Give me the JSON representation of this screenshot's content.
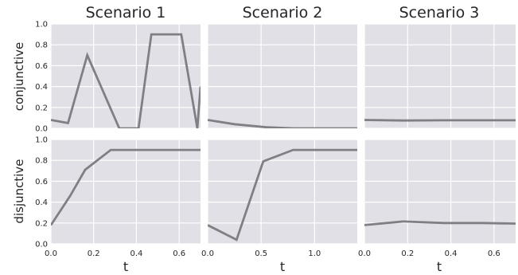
{
  "figure": {
    "col_titles": [
      "Scenario 1",
      "Scenario 2",
      "Scenario 3"
    ],
    "row_labels": [
      "conjunctive",
      "disjunctive"
    ],
    "xlabel": "t",
    "series_color": "#7f7f84",
    "panel_background": "#e0e0e6",
    "grid_color": "#ffffff"
  },
  "chart_data": [
    {
      "type": "line",
      "scenario": "Scenario 1",
      "row": "conjunctive",
      "xlim": [
        0,
        0.7
      ],
      "ylim": [
        0,
        1.0
      ],
      "xticks": [
        0.0,
        0.2,
        0.4,
        0.6
      ],
      "yticks": [
        0.0,
        0.2,
        0.4,
        0.6,
        0.8,
        1.0
      ],
      "x": [
        0.0,
        0.08,
        0.17,
        0.32,
        0.41,
        0.47,
        0.61,
        0.685,
        0.7
      ],
      "y": [
        0.08,
        0.05,
        0.7,
        0.0,
        0.0,
        0.9,
        0.9,
        0.0,
        0.4
      ],
      "grid": true
    },
    {
      "type": "line",
      "scenario": "Scenario 2",
      "row": "conjunctive",
      "xlim": [
        0,
        1.4
      ],
      "ylim": [
        0,
        1.0
      ],
      "xticks": [
        0.0,
        0.5,
        1.0
      ],
      "yticks": [
        0.0,
        0.2,
        0.4,
        0.6,
        0.8,
        1.0
      ],
      "x": [
        0.0,
        0.25,
        0.55,
        0.8,
        1.4
      ],
      "y": [
        0.08,
        0.04,
        0.01,
        0.0,
        0.0
      ],
      "grid": true
    },
    {
      "type": "line",
      "scenario": "Scenario 3",
      "row": "conjunctive",
      "xlim": [
        0,
        0.7
      ],
      "ylim": [
        0,
        1.0
      ],
      "xticks": [
        0.0,
        0.2,
        0.4,
        0.6
      ],
      "yticks": [
        0.0,
        0.2,
        0.4,
        0.6,
        0.8,
        1.0
      ],
      "x": [
        0.0,
        0.18,
        0.37,
        0.55,
        0.7
      ],
      "y": [
        0.08,
        0.075,
        0.077,
        0.077,
        0.077
      ],
      "grid": true
    },
    {
      "type": "line",
      "scenario": "Scenario 1",
      "row": "disjunctive",
      "xlim": [
        0,
        0.7
      ],
      "ylim": [
        0,
        1.0
      ],
      "xticks": [
        0.0,
        0.2,
        0.4,
        0.6
      ],
      "yticks": [
        0.0,
        0.2,
        0.4,
        0.6,
        0.8,
        1.0
      ],
      "x": [
        0.0,
        0.09,
        0.16,
        0.28,
        0.7
      ],
      "y": [
        0.18,
        0.46,
        0.71,
        0.9,
        0.9
      ],
      "grid": true
    },
    {
      "type": "line",
      "scenario": "Scenario 2",
      "row": "disjunctive",
      "xlim": [
        0,
        1.4
      ],
      "ylim": [
        0,
        1.0
      ],
      "xticks": [
        0.0,
        0.5,
        1.0
      ],
      "yticks": [
        0.0,
        0.2,
        0.4,
        0.6,
        0.8,
        1.0
      ],
      "x": [
        0.0,
        0.27,
        0.52,
        0.8,
        1.4
      ],
      "y": [
        0.18,
        0.04,
        0.79,
        0.9,
        0.9
      ],
      "grid": true
    },
    {
      "type": "line",
      "scenario": "Scenario 3",
      "row": "disjunctive",
      "xlim": [
        0,
        0.7
      ],
      "ylim": [
        0,
        1.0
      ],
      "xticks": [
        0.0,
        0.2,
        0.4,
        0.6
      ],
      "yticks": [
        0.0,
        0.2,
        0.4,
        0.6,
        0.8,
        1.0
      ],
      "x": [
        0.0,
        0.18,
        0.37,
        0.55,
        0.7
      ],
      "y": [
        0.18,
        0.215,
        0.2,
        0.2,
        0.195
      ],
      "grid": true
    }
  ]
}
